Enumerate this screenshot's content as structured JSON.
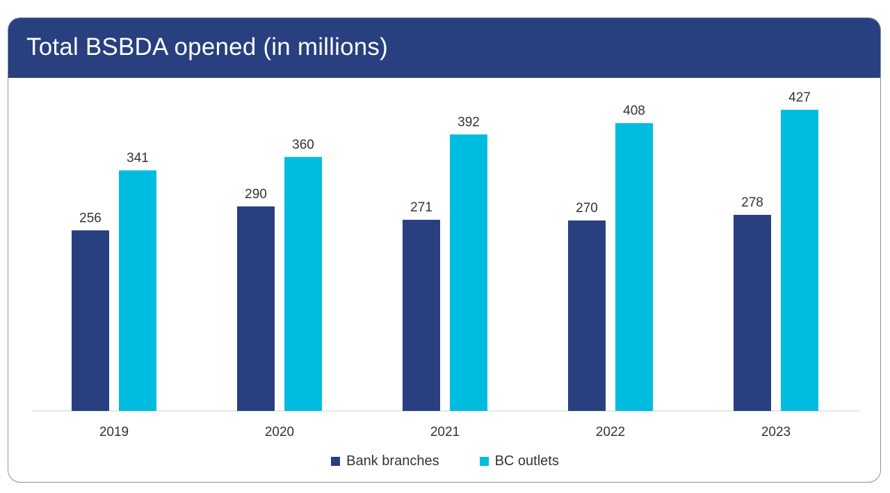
{
  "header": {
    "title": "Total BSBDA opened (in millions)"
  },
  "colors": {
    "header_bg": "#283f80",
    "bank_branches": "#283f80",
    "bc_outlets": "#00bde0",
    "axis_line": "#d0d0d0",
    "text": "#333333"
  },
  "legend": {
    "items": [
      {
        "label": "Bank branches",
        "color": "#283f80"
      },
      {
        "label": "BC outlets",
        "color": "#00bde0"
      }
    ],
    "placement": "bottom-center"
  },
  "chart_data": {
    "type": "bar",
    "title": "Total BSBDA opened (in millions)",
    "categories": [
      "2019",
      "2020",
      "2021",
      "2022",
      "2023"
    ],
    "series": [
      {
        "name": "Bank branches",
        "values": [
          256,
          290,
          271,
          270,
          278
        ],
        "color": "#283f80"
      },
      {
        "name": "BC outlets",
        "values": [
          341,
          360,
          392,
          408,
          427
        ],
        "color": "#00bde0"
      }
    ],
    "xlabel": "",
    "ylabel": "",
    "ylim": [
      0,
      485
    ],
    "grid": false,
    "data_labels": true
  }
}
